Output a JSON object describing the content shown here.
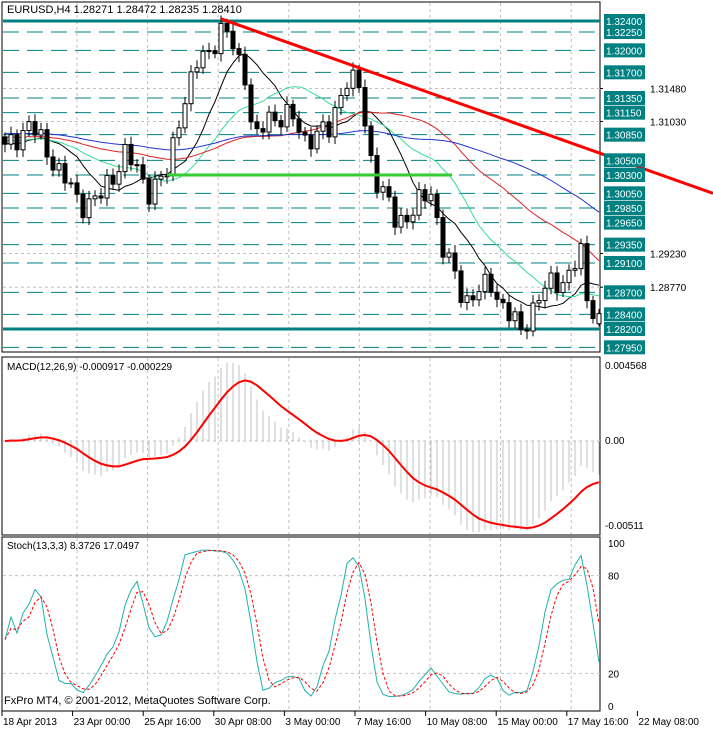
{
  "header": {
    "title": "EURUSD,H4  1.28271 1.28472 1.28235 1.28410"
  },
  "footer": {
    "copyright": "FxPro MT4, © 2001-2012, MetaQuotes Software Corp."
  },
  "colors": {
    "level": "#008080",
    "trend": "#ff0000",
    "support": "#33cc33",
    "ma_black": "#000000",
    "ma_green": "#33dd99",
    "ma_red": "#dd2222",
    "ma_blue": "#2233cc",
    "macd_signal": "#ff0000",
    "macd_hist": "#c0c0c0",
    "stoch_main": "#20b2aa",
    "stoch_signal": "#ff0000"
  },
  "chart_data": [
    {
      "type": "candlestick",
      "title": "EURUSD,H4",
      "ohlc_last": {
        "open": 1.28271,
        "high": 1.28472,
        "low": 1.28235,
        "close": 1.2841
      },
      "price_path": [
        [
          0,
          1.3064
        ],
        [
          4,
          1.31
        ],
        [
          8,
          1.305
        ],
        [
          12.5,
          1.299
        ],
        [
          16,
          1.3
        ],
        [
          20,
          1.306
        ],
        [
          24,
          1.301
        ],
        [
          27,
          1.303
        ],
        [
          29,
          1.311
        ],
        [
          32,
          1.318
        ],
        [
          36.5,
          1.323
        ],
        [
          40,
          1.317
        ],
        [
          41.5,
          1.307
        ],
        [
          44,
          1.311
        ],
        [
          47.5,
          1.311
        ],
        [
          50,
          1.308
        ],
        [
          54,
          1.309
        ],
        [
          56.5,
          1.316
        ],
        [
          59,
          1.315
        ],
        [
          61.5,
          1.303
        ],
        [
          65,
          1.297
        ],
        [
          67.5,
          1.2975
        ],
        [
          71,
          1.301
        ],
        [
          73,
          1.293
        ],
        [
          76.5,
          1.286
        ],
        [
          81,
          1.288
        ],
        [
          84,
          1.284
        ],
        [
          86,
          1.2815
        ],
        [
          88.5,
          1.286
        ],
        [
          91,
          1.288
        ],
        [
          93.5,
          1.289
        ],
        [
          96,
          1.292
        ],
        [
          97,
          1.286
        ],
        [
          99,
          1.2841
        ]
      ],
      "ylim": [
        1.2787,
        1.3269
      ],
      "levels_solid": [
        1.324,
        1.282
      ],
      "levels_dashed": [
        1.3225,
        1.32,
        1.317,
        1.3135,
        1.3115,
        1.3085,
        1.305,
        1.303,
        1.3005,
        1.2985,
        1.2965,
        1.2935,
        1.291,
        1.287,
        1.284,
        1.2795
      ],
      "level_labels": [
        "1.32400",
        "1.32250",
        "1.32000",
        "1.31700",
        "1.31350",
        "1.31150",
        "1.30850",
        "1.30500",
        "1.30300",
        "1.30050",
        "1.29850",
        "1.29650",
        "1.29350",
        "1.29100",
        "1.28700",
        "1.28400",
        "1.28200",
        "1.27950"
      ],
      "price_ticks": [
        "1.31480",
        "1.31030",
        "1.29230",
        "1.28770"
      ],
      "trendline": {
        "from": [
          36,
          1.3243
        ],
        "to": [
          118,
          1.3005
        ]
      },
      "support_line": {
        "from": [
          27,
          1.303
        ],
        "to": [
          74.5,
          1.303
        ]
      },
      "moving_averages": [
        10,
        20,
        40,
        60
      ],
      "x_tick_labels": [
        "18 Apr 2013",
        "23 Apr 00:00",
        "25 Apr 16:00",
        "30 Apr 08:00",
        "3 May 00:00",
        "7 May 16:00",
        "10 May 08:00",
        "15 May 00:00",
        "17 May 16:00",
        "22 May 08:00"
      ]
    },
    {
      "type": "bar+line",
      "title": "MACD(12,26,9) -0.000917 -0.000229",
      "ylim": [
        -0.00511,
        0.004568
      ],
      "y_tick_labels": [
        "0.004568",
        "0.00",
        "-0.00511"
      ]
    },
    {
      "type": "line",
      "title": "Stoch(13,3,3) 8.3726 17.0497",
      "ylim": [
        0,
        100
      ],
      "y_tick_labels": [
        "100",
        "80",
        "20",
        "0"
      ]
    }
  ]
}
